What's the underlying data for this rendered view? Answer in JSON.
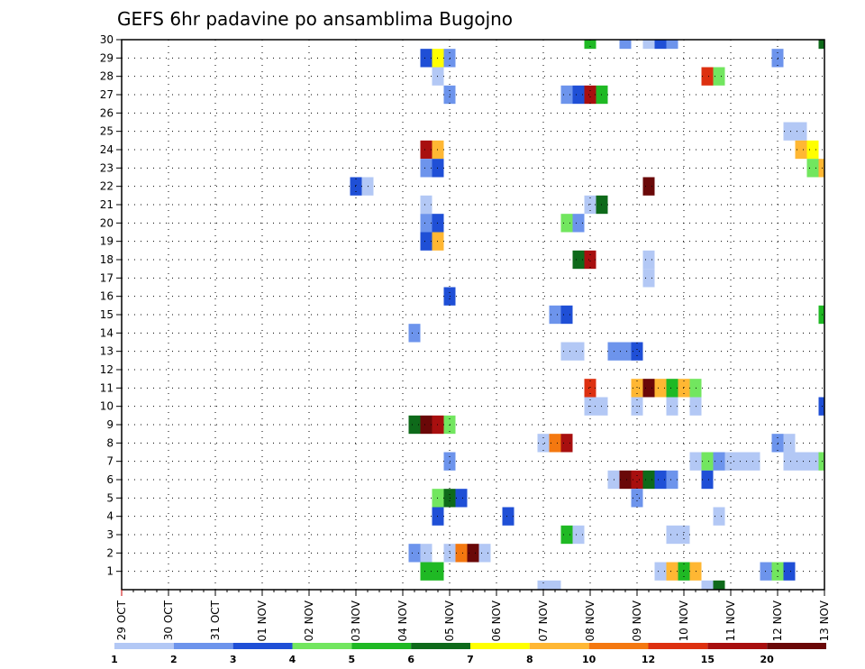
{
  "chart_data": {
    "type": "heatmap",
    "title": "GEFS 6hr padavine po ansamblima Bugojno",
    "xlabel": "",
    "ylabel": "",
    "x_ticks": [
      "29 OCT",
      "30 OCT",
      "31 OCT",
      "01 NOV",
      "02 NOV",
      "03 NOV",
      "04 NOV",
      "05 NOV",
      "06 NOV",
      "07 NOV",
      "08 NOV",
      "09 NOV",
      "10 NOV",
      "11 NOV",
      "12 NOV",
      "13 NOV"
    ],
    "xlim_steps": [
      0,
      60
    ],
    "y_ticks": [
      1,
      2,
      3,
      4,
      5,
      6,
      7,
      8,
      9,
      10,
      11,
      12,
      13,
      14,
      15,
      16,
      17,
      18,
      19,
      20,
      21,
      22,
      23,
      24,
      25,
      26,
      27,
      28,
      29,
      30
    ],
    "ylim": [
      0,
      30
    ],
    "grid": true,
    "legend_position": "bottom",
    "legend": {
      "labels": [
        "1",
        "2",
        "3",
        "4",
        "5",
        "6",
        "7",
        "8",
        "10",
        "12",
        "15",
        "20"
      ],
      "colors": [
        "#b3c8f5",
        "#6d94ec",
        "#1f4fd6",
        "#72e65f",
        "#1fb924",
        "#0e6a1a",
        "#ffff00",
        "#ffb733",
        "#f47810",
        "#dd3010",
        "#a80f0f",
        "#6a0808"
      ]
    },
    "cells": [
      {
        "member": 30,
        "step": 40,
        "c": 5
      },
      {
        "member": 30,
        "step": 43,
        "c": 2
      },
      {
        "member": 30,
        "step": 45,
        "c": 1
      },
      {
        "member": 30,
        "step": 46,
        "c": 3
      },
      {
        "member": 30,
        "step": 47,
        "c": 2
      },
      {
        "member": 30,
        "step": 60,
        "c": 6
      },
      {
        "member": 29,
        "step": 26,
        "c": 3
      },
      {
        "member": 29,
        "step": 27,
        "c": 7
      },
      {
        "member": 29,
        "step": 28,
        "c": 2
      },
      {
        "member": 29,
        "step": 56,
        "c": 2
      },
      {
        "member": 28,
        "step": 27,
        "c": 1
      },
      {
        "member": 28,
        "step": 50,
        "c": 10
      },
      {
        "member": 28,
        "step": 51,
        "c": 4
      },
      {
        "member": 27,
        "step": 28,
        "c": 2
      },
      {
        "member": 27,
        "step": 38,
        "c": 2
      },
      {
        "member": 27,
        "step": 39,
        "c": 3
      },
      {
        "member": 27,
        "step": 40,
        "c": 11
      },
      {
        "member": 27,
        "step": 41,
        "c": 5
      },
      {
        "member": 25,
        "step": 57,
        "c": 1
      },
      {
        "member": 25,
        "step": 58,
        "c": 1
      },
      {
        "member": 24,
        "step": 26,
        "c": 11
      },
      {
        "member": 24,
        "step": 27,
        "c": 8
      },
      {
        "member": 24,
        "step": 58,
        "c": 8
      },
      {
        "member": 24,
        "step": 59,
        "c": 7
      },
      {
        "member": 23,
        "step": 26,
        "c": 2
      },
      {
        "member": 23,
        "step": 27,
        "c": 3
      },
      {
        "member": 23,
        "step": 59,
        "c": 4
      },
      {
        "member": 23,
        "step": 60,
        "c": 8
      },
      {
        "member": 22,
        "step": 20,
        "c": 3
      },
      {
        "member": 22,
        "step": 21,
        "c": 1
      },
      {
        "member": 22,
        "step": 45,
        "c": 12
      },
      {
        "member": 21,
        "step": 26,
        "c": 1
      },
      {
        "member": 21,
        "step": 40,
        "c": 1
      },
      {
        "member": 21,
        "step": 41,
        "c": 6
      },
      {
        "member": 20,
        "step": 26,
        "c": 2
      },
      {
        "member": 20,
        "step": 27,
        "c": 3
      },
      {
        "member": 20,
        "step": 38,
        "c": 4
      },
      {
        "member": 20,
        "step": 39,
        "c": 2
      },
      {
        "member": 19,
        "step": 26,
        "c": 3
      },
      {
        "member": 19,
        "step": 27,
        "c": 8
      },
      {
        "member": 18,
        "step": 39,
        "c": 6
      },
      {
        "member": 18,
        "step": 40,
        "c": 11
      },
      {
        "member": 18,
        "step": 45,
        "c": 1
      },
      {
        "member": 17,
        "step": 45,
        "c": 1
      },
      {
        "member": 16,
        "step": 28,
        "c": 3
      },
      {
        "member": 15,
        "step": 37,
        "c": 2
      },
      {
        "member": 15,
        "step": 38,
        "c": 3
      },
      {
        "member": 15,
        "step": 60,
        "c": 5
      },
      {
        "member": 14,
        "step": 25,
        "c": 2
      },
      {
        "member": 13,
        "step": 38,
        "c": 1
      },
      {
        "member": 13,
        "step": 39,
        "c": 1
      },
      {
        "member": 13,
        "step": 42,
        "c": 2
      },
      {
        "member": 13,
        "step": 43,
        "c": 2
      },
      {
        "member": 13,
        "step": 44,
        "c": 3
      },
      {
        "member": 11,
        "step": 40,
        "c": 10
      },
      {
        "member": 11,
        "step": 44,
        "c": 8
      },
      {
        "member": 11,
        "step": 45,
        "c": 12
      },
      {
        "member": 11,
        "step": 46,
        "c": 8
      },
      {
        "member": 11,
        "step": 47,
        "c": 5
      },
      {
        "member": 11,
        "step": 48,
        "c": 8
      },
      {
        "member": 11,
        "step": 49,
        "c": 4
      },
      {
        "member": 10,
        "step": 40,
        "c": 1
      },
      {
        "member": 10,
        "step": 41,
        "c": 1
      },
      {
        "member": 10,
        "step": 44,
        "c": 1
      },
      {
        "member": 10,
        "step": 47,
        "c": 1
      },
      {
        "member": 10,
        "step": 49,
        "c": 1
      },
      {
        "member": 10,
        "step": 60,
        "c": 3
      },
      {
        "member": 9,
        "step": 25,
        "c": 6
      },
      {
        "member": 9,
        "step": 26,
        "c": 12
      },
      {
        "member": 9,
        "step": 27,
        "c": 11
      },
      {
        "member": 9,
        "step": 28,
        "c": 4
      },
      {
        "member": 8,
        "step": 36,
        "c": 1
      },
      {
        "member": 8,
        "step": 37,
        "c": 9
      },
      {
        "member": 8,
        "step": 38,
        "c": 11
      },
      {
        "member": 8,
        "step": 56,
        "c": 2
      },
      {
        "member": 8,
        "step": 57,
        "c": 1
      },
      {
        "member": 7,
        "step": 28,
        "c": 2
      },
      {
        "member": 7,
        "step": 49,
        "c": 1
      },
      {
        "member": 7,
        "step": 50,
        "c": 4
      },
      {
        "member": 7,
        "step": 51,
        "c": 2
      },
      {
        "member": 7,
        "step": 52,
        "c": 1
      },
      {
        "member": 7,
        "step": 53,
        "c": 1
      },
      {
        "member": 7,
        "step": 54,
        "c": 1
      },
      {
        "member": 7,
        "step": 57,
        "c": 1
      },
      {
        "member": 7,
        "step": 58,
        "c": 1
      },
      {
        "member": 7,
        "step": 59,
        "c": 1
      },
      {
        "member": 7,
        "step": 60,
        "c": 4
      },
      {
        "member": 6,
        "step": 42,
        "c": 1
      },
      {
        "member": 6,
        "step": 43,
        "c": 12
      },
      {
        "member": 6,
        "step": 44,
        "c": 11
      },
      {
        "member": 6,
        "step": 45,
        "c": 6
      },
      {
        "member": 6,
        "step": 46,
        "c": 3
      },
      {
        "member": 6,
        "step": 47,
        "c": 2
      },
      {
        "member": 6,
        "step": 50,
        "c": 3
      },
      {
        "member": 5,
        "step": 27,
        "c": 4
      },
      {
        "member": 5,
        "step": 28,
        "c": 6
      },
      {
        "member": 5,
        "step": 29,
        "c": 3
      },
      {
        "member": 5,
        "step": 44,
        "c": 2
      },
      {
        "member": 4,
        "step": 27,
        "c": 3
      },
      {
        "member": 4,
        "step": 33,
        "c": 3
      },
      {
        "member": 4,
        "step": 51,
        "c": 1
      },
      {
        "member": 3,
        "step": 38,
        "c": 5
      },
      {
        "member": 3,
        "step": 39,
        "c": 1
      },
      {
        "member": 3,
        "step": 47,
        "c": 1
      },
      {
        "member": 3,
        "step": 48,
        "c": 1
      },
      {
        "member": 2,
        "step": 25,
        "c": 2
      },
      {
        "member": 2,
        "step": 26,
        "c": 1
      },
      {
        "member": 2,
        "step": 28,
        "c": 1
      },
      {
        "member": 2,
        "step": 29,
        "c": 9
      },
      {
        "member": 2,
        "step": 30,
        "c": 12
      },
      {
        "member": 2,
        "step": 31,
        "c": 1
      },
      {
        "member": 1,
        "step": 26,
        "c": 5
      },
      {
        "member": 1,
        "step": 27,
        "c": 5
      },
      {
        "member": 1,
        "step": 46,
        "c": 1
      },
      {
        "member": 1,
        "step": 47,
        "c": 8
      },
      {
        "member": 1,
        "step": 48,
        "c": 5
      },
      {
        "member": 1,
        "step": 49,
        "c": 8
      },
      {
        "member": 1,
        "step": 55,
        "c": 2
      },
      {
        "member": 1,
        "step": 56,
        "c": 4
      },
      {
        "member": 1,
        "step": 57,
        "c": 3
      },
      {
        "member": 0,
        "step": 36,
        "c": 1
      },
      {
        "member": 0,
        "step": 37,
        "c": 1
      },
      {
        "member": 0,
        "step": 50,
        "c": 1
      },
      {
        "member": 0,
        "step": 51,
        "c": 6
      }
    ]
  }
}
